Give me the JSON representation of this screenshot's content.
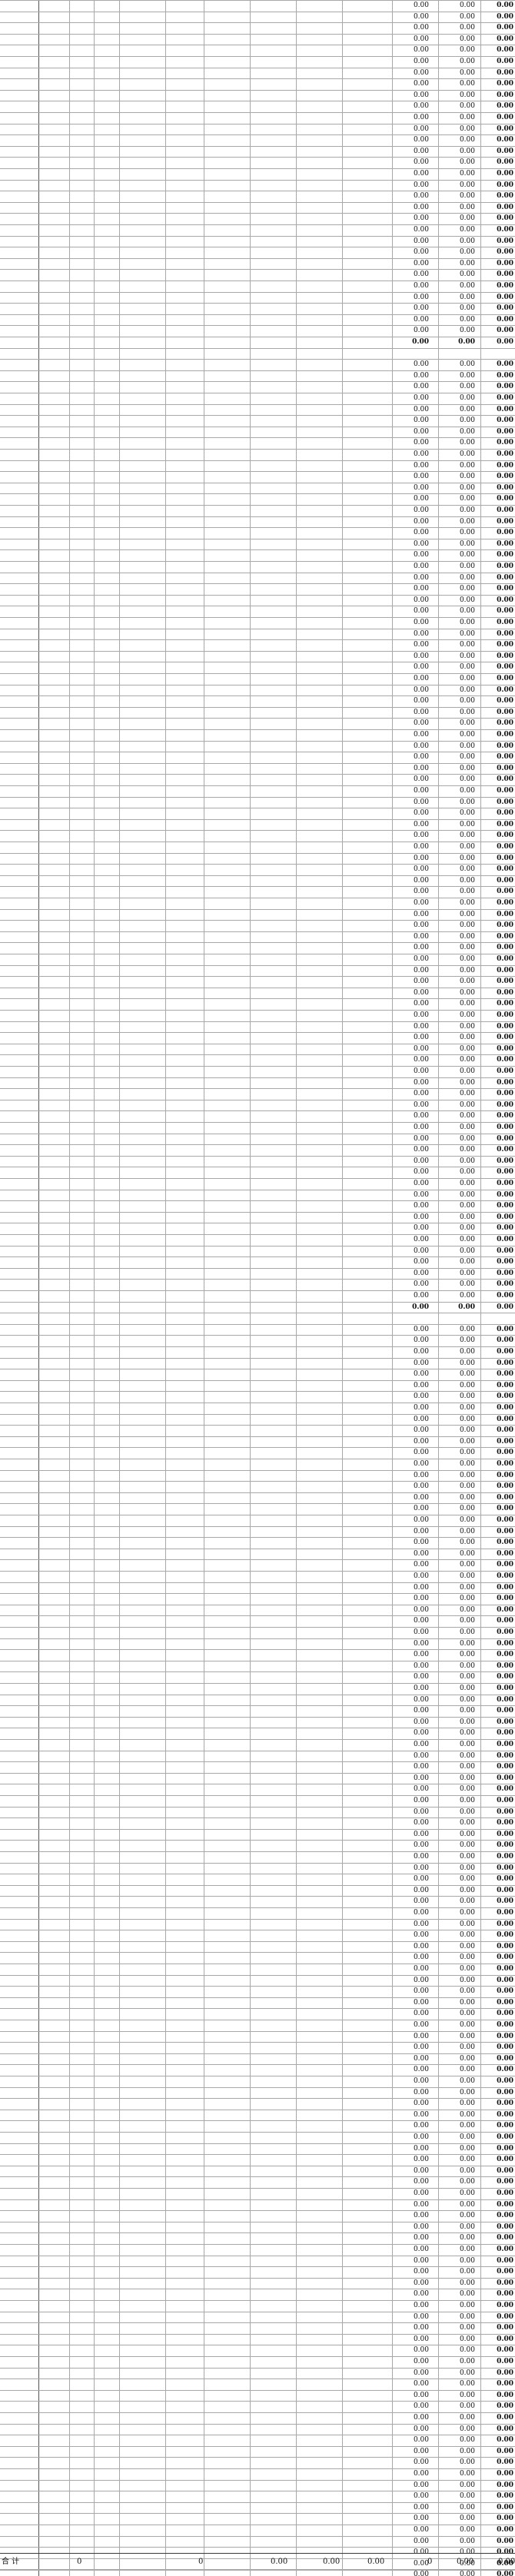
{
  "sheet": {
    "blocks": [
      {
        "rows": 30,
        "has_top_blank": false,
        "values": [
          "0.00",
          "0.00",
          "0.00"
        ],
        "subtotal": [
          "0.00",
          "0.00",
          "0.00"
        ]
      },
      {
        "rows": 84,
        "has_top_blank": true,
        "values": [
          "0.00",
          "0.00",
          "0.00"
        ],
        "subtotal": [
          "0.00",
          "0.00",
          "0.00"
        ]
      },
      {
        "rows": 112,
        "has_top_blank": true,
        "values": [
          "0.00",
          "0.00",
          "0.00"
        ],
        "subtotal": [
          "0.00",
          "0.00",
          "0.00"
        ]
      }
    ],
    "totals": {
      "label": "合  计",
      "col2": "0",
      "col4": "0",
      "col5a": "0.00",
      "col5b": "0.00",
      "col5c": "0.00",
      "col6": "0",
      "col7": "0.00",
      "col8": "0.00"
    }
  }
}
